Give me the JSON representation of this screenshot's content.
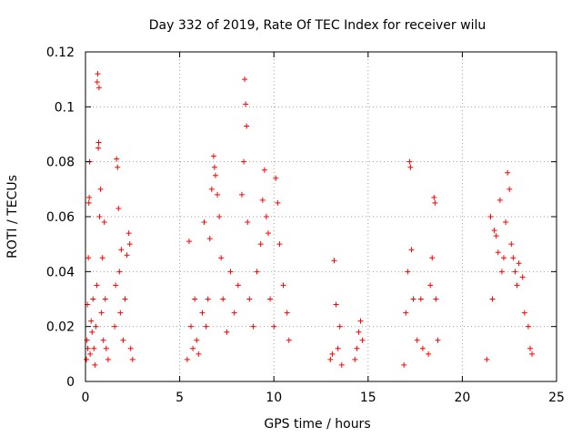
{
  "chart_data": {
    "type": "scatter",
    "title": "Day 332 of 2019, Rate Of TEC Index for receiver wilu",
    "xlabel": "GPS time / hours",
    "ylabel": "ROTI / TECUs",
    "xlim": [
      0,
      25
    ],
    "ylim": [
      0,
      0.12
    ],
    "x_ticks": [
      0,
      5,
      10,
      15,
      20,
      25
    ],
    "x_tick_labels": [
      "0",
      "5",
      "10",
      "15",
      "20",
      "25"
    ],
    "y_ticks": [
      0,
      0.02,
      0.04,
      0.06,
      0.08,
      0.1,
      0.12
    ],
    "y_tick_labels": [
      "0",
      "0.02",
      "0.04",
      "0.06",
      "0.08",
      "0.1",
      "0.12"
    ],
    "grid": true,
    "marker": "+",
    "color": "#ff0000",
    "series": [
      {
        "name": "ROTI",
        "points": [
          [
            0.05,
            0.008
          ],
          [
            0.08,
            0.015
          ],
          [
            0.1,
            0.028
          ],
          [
            0.12,
            0.012
          ],
          [
            0.15,
            0.045
          ],
          [
            0.18,
            0.065
          ],
          [
            0.2,
            0.067
          ],
          [
            0.22,
            0.08
          ],
          [
            0.25,
            0.01
          ],
          [
            0.3,
            0.022
          ],
          [
            0.35,
            0.018
          ],
          [
            0.4,
            0.03
          ],
          [
            0.45,
            0.012
          ],
          [
            0.5,
            0.006
          ],
          [
            0.55,
            0.02
          ],
          [
            0.6,
            0.035
          ],
          [
            0.62,
            0.109
          ],
          [
            0.65,
            0.112
          ],
          [
            0.68,
            0.085
          ],
          [
            0.7,
            0.087
          ],
          [
            0.72,
            0.107
          ],
          [
            0.75,
            0.06
          ],
          [
            0.8,
            0.07
          ],
          [
            0.85,
            0.025
          ],
          [
            0.9,
            0.045
          ],
          [
            0.95,
            0.015
          ],
          [
            1.0,
            0.058
          ],
          [
            1.05,
            0.03
          ],
          [
            1.1,
            0.012
          ],
          [
            1.2,
            0.008
          ],
          [
            1.55,
            0.02
          ],
          [
            1.6,
            0.035
          ],
          [
            1.65,
            0.081
          ],
          [
            1.7,
            0.078
          ],
          [
            1.75,
            0.063
          ],
          [
            1.8,
            0.04
          ],
          [
            1.85,
            0.025
          ],
          [
            1.9,
            0.048
          ],
          [
            2.0,
            0.015
          ],
          [
            2.1,
            0.03
          ],
          [
            2.2,
            0.046
          ],
          [
            2.3,
            0.054
          ],
          [
            2.35,
            0.05
          ],
          [
            2.4,
            0.012
          ],
          [
            2.5,
            0.008
          ],
          [
            5.4,
            0.008
          ],
          [
            5.5,
            0.051
          ],
          [
            5.6,
            0.02
          ],
          [
            5.7,
            0.012
          ],
          [
            5.8,
            0.03
          ],
          [
            5.9,
            0.015
          ],
          [
            6.0,
            0.01
          ],
          [
            6.2,
            0.025
          ],
          [
            6.3,
            0.058
          ],
          [
            6.4,
            0.02
          ],
          [
            6.5,
            0.03
          ],
          [
            6.6,
            0.052
          ],
          [
            6.7,
            0.07
          ],
          [
            6.8,
            0.082
          ],
          [
            6.85,
            0.078
          ],
          [
            6.9,
            0.075
          ],
          [
            7.0,
            0.068
          ],
          [
            7.1,
            0.06
          ],
          [
            7.2,
            0.045
          ],
          [
            7.3,
            0.03
          ],
          [
            7.5,
            0.018
          ],
          [
            7.7,
            0.04
          ],
          [
            7.9,
            0.025
          ],
          [
            8.1,
            0.035
          ],
          [
            8.3,
            0.068
          ],
          [
            8.4,
            0.08
          ],
          [
            8.45,
            0.11
          ],
          [
            8.5,
            0.101
          ],
          [
            8.55,
            0.093
          ],
          [
            8.6,
            0.058
          ],
          [
            8.7,
            0.03
          ],
          [
            8.9,
            0.02
          ],
          [
            9.1,
            0.04
          ],
          [
            9.3,
            0.05
          ],
          [
            9.4,
            0.066
          ],
          [
            9.5,
            0.077
          ],
          [
            9.6,
            0.06
          ],
          [
            9.7,
            0.054
          ],
          [
            9.8,
            0.03
          ],
          [
            10.0,
            0.02
          ],
          [
            10.1,
            0.074
          ],
          [
            10.2,
            0.065
          ],
          [
            10.3,
            0.05
          ],
          [
            10.5,
            0.035
          ],
          [
            10.7,
            0.025
          ],
          [
            10.8,
            0.015
          ],
          [
            13.0,
            0.008
          ],
          [
            13.1,
            0.01
          ],
          [
            13.2,
            0.044
          ],
          [
            13.3,
            0.028
          ],
          [
            13.4,
            0.012
          ],
          [
            13.5,
            0.02
          ],
          [
            13.6,
            0.006
          ],
          [
            14.3,
            0.008
          ],
          [
            14.4,
            0.012
          ],
          [
            14.5,
            0.018
          ],
          [
            14.6,
            0.022
          ],
          [
            14.7,
            0.015
          ],
          [
            16.9,
            0.006
          ],
          [
            17.0,
            0.025
          ],
          [
            17.1,
            0.04
          ],
          [
            17.2,
            0.08
          ],
          [
            17.25,
            0.078
          ],
          [
            17.3,
            0.048
          ],
          [
            17.4,
            0.03
          ],
          [
            17.6,
            0.015
          ],
          [
            17.8,
            0.03
          ],
          [
            17.9,
            0.012
          ],
          [
            18.2,
            0.01
          ],
          [
            18.3,
            0.035
          ],
          [
            18.4,
            0.045
          ],
          [
            18.5,
            0.067
          ],
          [
            18.55,
            0.065
          ],
          [
            18.6,
            0.03
          ],
          [
            18.7,
            0.015
          ],
          [
            21.3,
            0.008
          ],
          [
            21.5,
            0.06
          ],
          [
            21.6,
            0.03
          ],
          [
            21.7,
            0.055
          ],
          [
            21.8,
            0.053
          ],
          [
            21.9,
            0.047
          ],
          [
            22.0,
            0.066
          ],
          [
            22.1,
            0.04
          ],
          [
            22.2,
            0.045
          ],
          [
            22.3,
            0.058
          ],
          [
            22.4,
            0.076
          ],
          [
            22.5,
            0.07
          ],
          [
            22.6,
            0.05
          ],
          [
            22.7,
            0.045
          ],
          [
            22.8,
            0.04
          ],
          [
            22.9,
            0.035
          ],
          [
            23.0,
            0.043
          ],
          [
            23.2,
            0.038
          ],
          [
            23.3,
            0.025
          ],
          [
            23.5,
            0.02
          ],
          [
            23.6,
            0.012
          ],
          [
            23.7,
            0.01
          ]
        ]
      }
    ]
  }
}
